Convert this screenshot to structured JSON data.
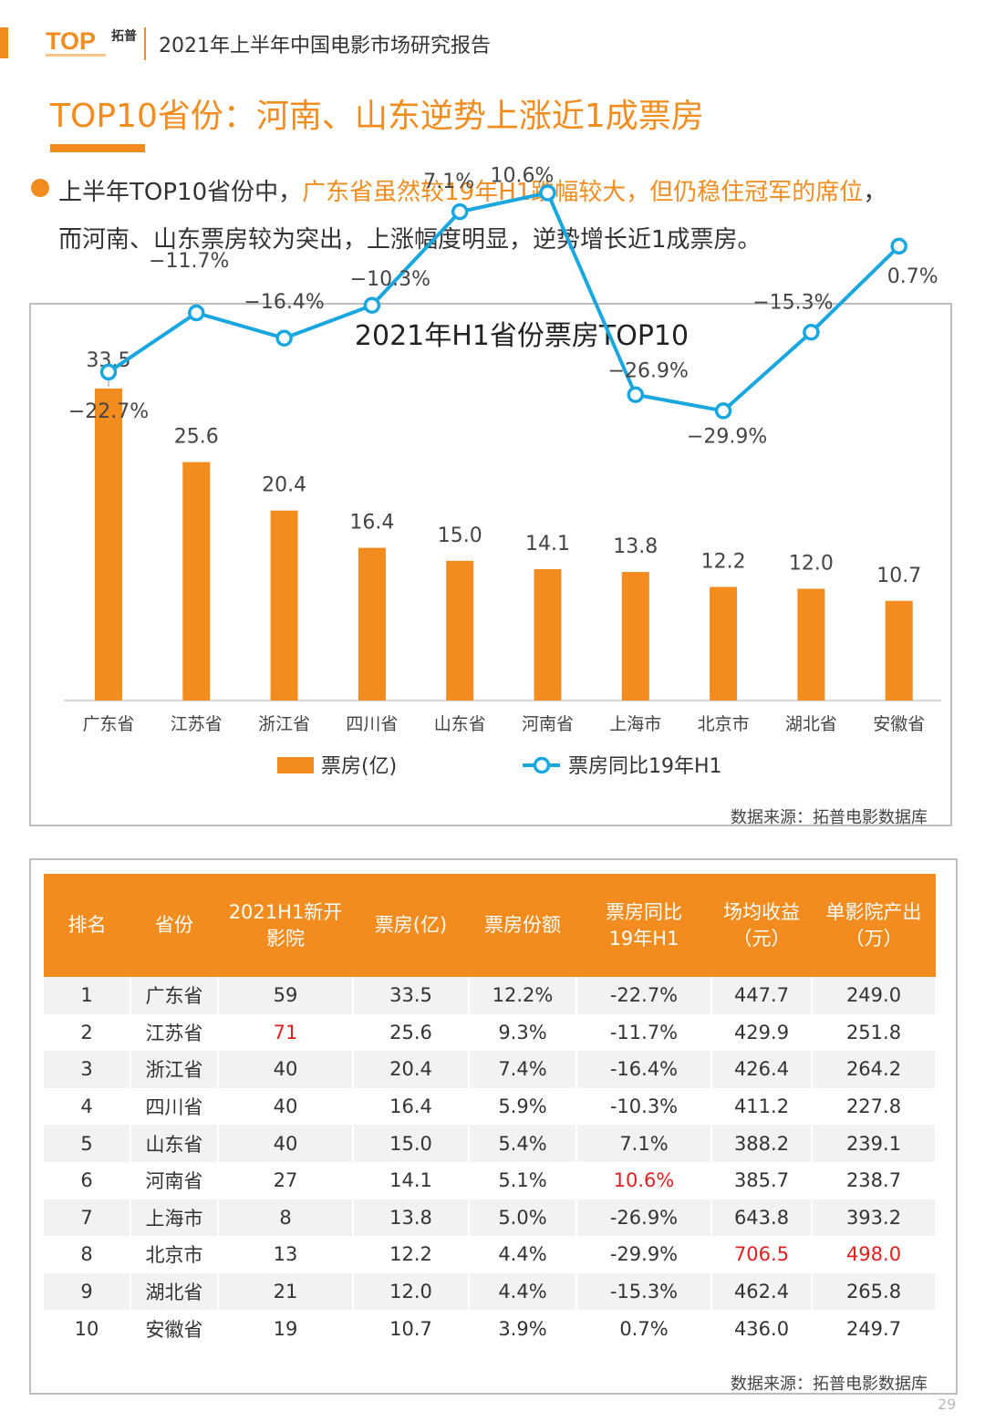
{
  "header": {
    "logo_text": "TOP",
    "logo_cn": "拓普",
    "report_title": "2021年上半年中国电影市场研究报告"
  },
  "page_title": "TOP10省份：河南、山东逆势上涨近1成票房",
  "summary": {
    "line1_a": "上半年TOP10省份中，",
    "line1_b": "广东省虽然较19年H1跌幅较大，但仍稳住冠军的席位",
    "line1_c": "，",
    "line2": "而河南、山东票房较为突出，上涨幅度明显，逆势增长近1成票房。"
  },
  "chart_data": {
    "type": "bar",
    "title": "2021年H1省份票房TOP10",
    "categories": [
      "广东省",
      "江苏省",
      "浙江省",
      "四川省",
      "山东省",
      "河南省",
      "上海市",
      "北京市",
      "湖北省",
      "安徽省"
    ],
    "series": [
      {
        "name": "票房(亿)",
        "type": "bar",
        "values": [
          33.5,
          25.6,
          20.4,
          16.4,
          15.0,
          14.1,
          13.8,
          12.2,
          12.0,
          10.7
        ],
        "labels": [
          "33.5",
          "25.6",
          "20.4",
          "16.4",
          "15.0",
          "14.1",
          "13.8",
          "12.2",
          "12.0",
          "10.7"
        ]
      },
      {
        "name": "票房同比19年H1",
        "type": "line",
        "values": [
          -22.7,
          -11.7,
          -16.4,
          -10.3,
          7.1,
          10.6,
          -26.9,
          -29.9,
          -15.3,
          0.7
        ],
        "labels": [
          "−22.7%",
          "−11.7%",
          "−16.4%",
          "−10.3%",
          "7.1%",
          "10.6%",
          "−26.9%",
          "−29.9%",
          "−15.3%",
          "0.7%"
        ]
      }
    ],
    "bar_ylim": [
      0,
      35
    ],
    "line_ylim": [
      -50,
      20
    ],
    "colors": {
      "bar": "#f28c1e",
      "line": "#1aa7e0"
    },
    "source": "数据来源：拓普电影数据库"
  },
  "table": {
    "headers": [
      [
        "排名"
      ],
      [
        "省份"
      ],
      [
        "2021H1新开",
        "影院"
      ],
      [
        "票房(亿)"
      ],
      [
        "票房份额"
      ],
      [
        "票房同比",
        "19年H1"
      ],
      [
        "场均收益",
        "（元）"
      ],
      [
        "单影院产出",
        "（万）"
      ]
    ],
    "rows": [
      [
        "1",
        "广东省",
        "59",
        "33.5",
        "12.2%",
        "-22.7%",
        "447.7",
        "249.0"
      ],
      [
        "2",
        "江苏省",
        "71",
        "25.6",
        "9.3%",
        "-11.7%",
        "429.9",
        "251.8"
      ],
      [
        "3",
        "浙江省",
        "40",
        "20.4",
        "7.4%",
        "-16.4%",
        "426.4",
        "264.2"
      ],
      [
        "4",
        "四川省",
        "40",
        "16.4",
        "5.9%",
        "-10.3%",
        "411.2",
        "227.8"
      ],
      [
        "5",
        "山东省",
        "40",
        "15.0",
        "5.4%",
        "7.1%",
        "388.2",
        "239.1"
      ],
      [
        "6",
        "河南省",
        "27",
        "14.1",
        "5.1%",
        "10.6%",
        "385.7",
        "238.7"
      ],
      [
        "7",
        "上海市",
        "8",
        "13.8",
        "5.0%",
        "-26.9%",
        "643.8",
        "393.2"
      ],
      [
        "8",
        "北京市",
        "13",
        "12.2",
        "4.4%",
        "-29.9%",
        "706.5",
        "498.0"
      ],
      [
        "9",
        "湖北省",
        "21",
        "12.0",
        "4.4%",
        "-15.3%",
        "462.4",
        "265.8"
      ],
      [
        "10",
        "安徽省",
        "19",
        "10.7",
        "3.9%",
        "0.7%",
        "436.0",
        "249.7"
      ]
    ],
    "highlight_cells": [
      [
        1,
        2
      ],
      [
        5,
        5
      ],
      [
        7,
        6
      ],
      [
        7,
        7
      ]
    ],
    "highlight_color": "#e02020",
    "source": "数据来源：拓普电影数据库"
  },
  "page_number": "29"
}
